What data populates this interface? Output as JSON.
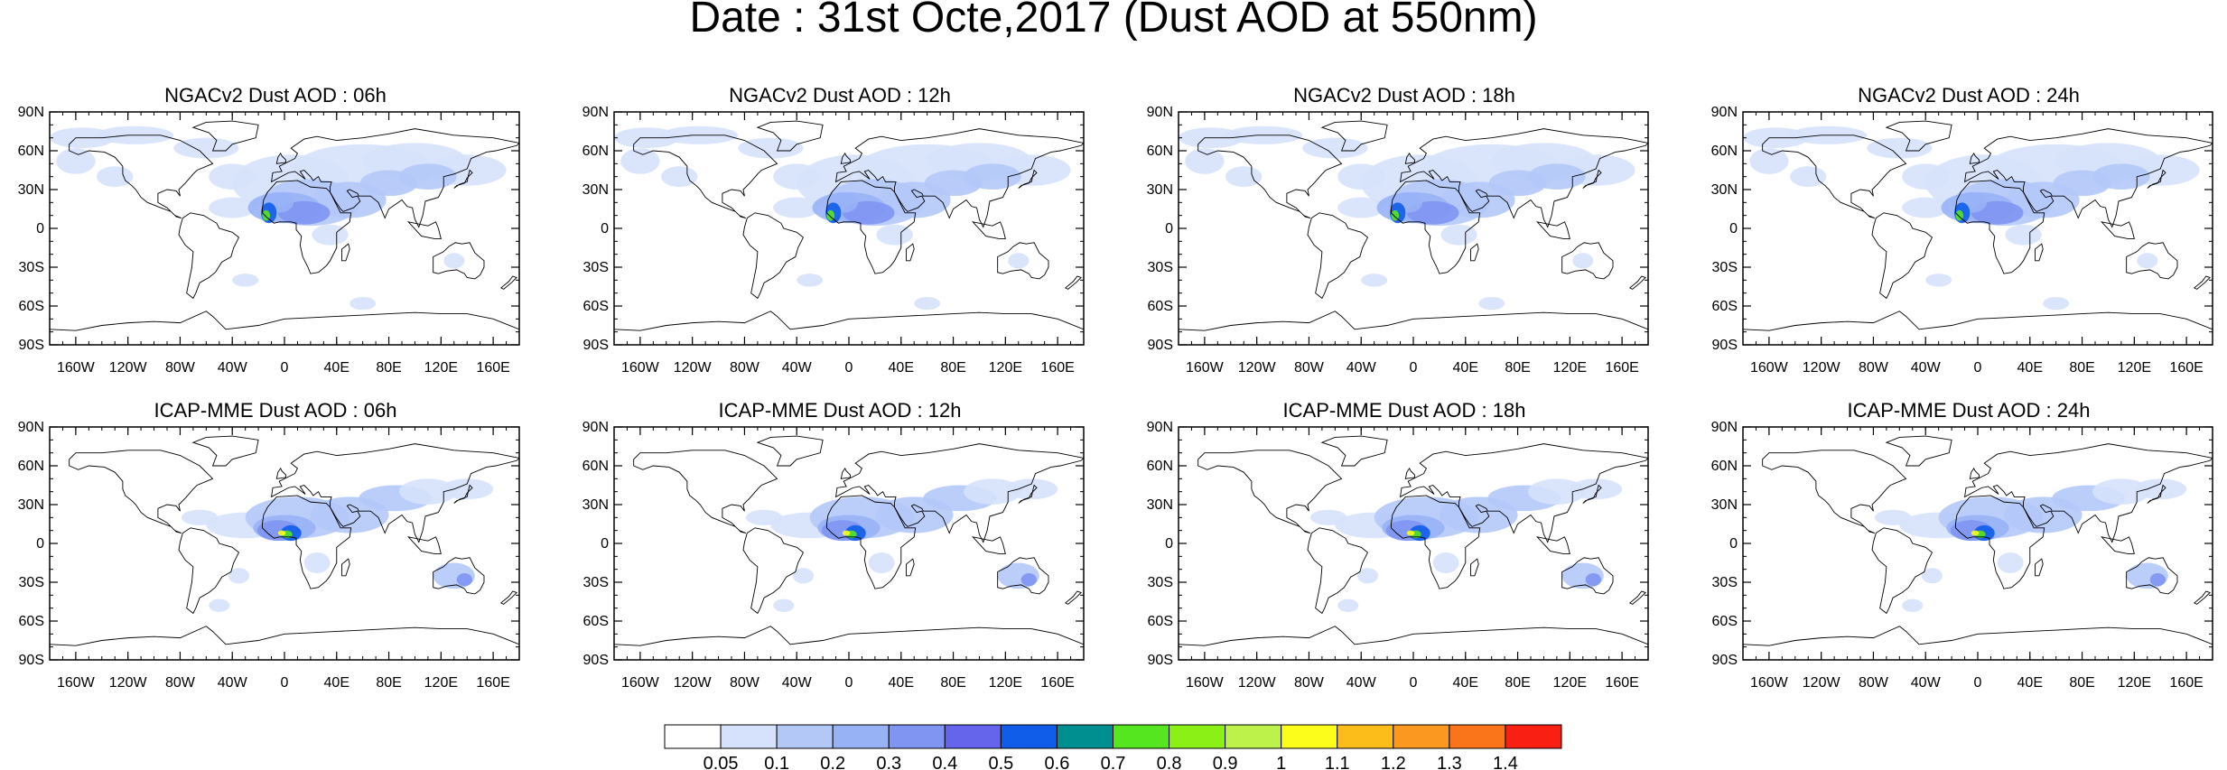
{
  "title": "Date : 31st Octe,2017 (Dust AOD at 550nm)",
  "panels": [
    {
      "title": "NGACv2 Dust AOD : 06h",
      "model": "NGACv2",
      "hour": 6
    },
    {
      "title": "NGACv2 Dust AOD : 12h",
      "model": "NGACv2",
      "hour": 12
    },
    {
      "title": "NGACv2 Dust AOD : 18h",
      "model": "NGACv2",
      "hour": 18
    },
    {
      "title": "NGACv2 Dust AOD : 24h",
      "model": "NGACv2",
      "hour": 24
    },
    {
      "title": "ICAP-MME Dust AOD : 06h",
      "model": "ICAP-MME",
      "hour": 6
    },
    {
      "title": "ICAP-MME Dust AOD : 12h",
      "model": "ICAP-MME",
      "hour": 12
    },
    {
      "title": "ICAP-MME Dust AOD : 18h",
      "model": "ICAP-MME",
      "hour": 18
    },
    {
      "title": "ICAP-MME Dust AOD : 24h",
      "model": "ICAP-MME",
      "hour": 24
    }
  ],
  "axes": {
    "lon_ticks": [
      "160W",
      "120W",
      "80W",
      "40W",
      "0",
      "40E",
      "80E",
      "120E",
      "160E"
    ],
    "lon_tick_values": [
      -160,
      -120,
      -80,
      -40,
      0,
      40,
      80,
      120,
      160
    ],
    "lat_ticks": [
      "90N",
      "60N",
      "30N",
      "0",
      "30S",
      "60S",
      "90S"
    ],
    "lat_tick_values": [
      90,
      60,
      30,
      0,
      -30,
      -60,
      -90
    ],
    "lon_range": [
      -180,
      180
    ],
    "lat_range": [
      -90,
      90
    ]
  },
  "colorbar": {
    "labels": [
      "0.05",
      "0.1",
      "0.2",
      "0.3",
      "0.4",
      "0.5",
      "0.6",
      "0.7",
      "0.8",
      "0.9",
      "1",
      "1.1",
      "1.2",
      "1.3",
      "1.4"
    ],
    "colors": [
      "#ffffff",
      "#d6e2fb",
      "#b4c8f8",
      "#98b2f6",
      "#8095f2",
      "#6565ec",
      "#0f5de9",
      "#008f91",
      "#56e620",
      "#8af016",
      "#bdf24a",
      "#fdfd1b",
      "#fcbd1a",
      "#fb9820",
      "#fa7419",
      "#f91f12"
    ]
  },
  "colors": {
    "coastline": "#000000",
    "frame": "#000000"
  }
}
